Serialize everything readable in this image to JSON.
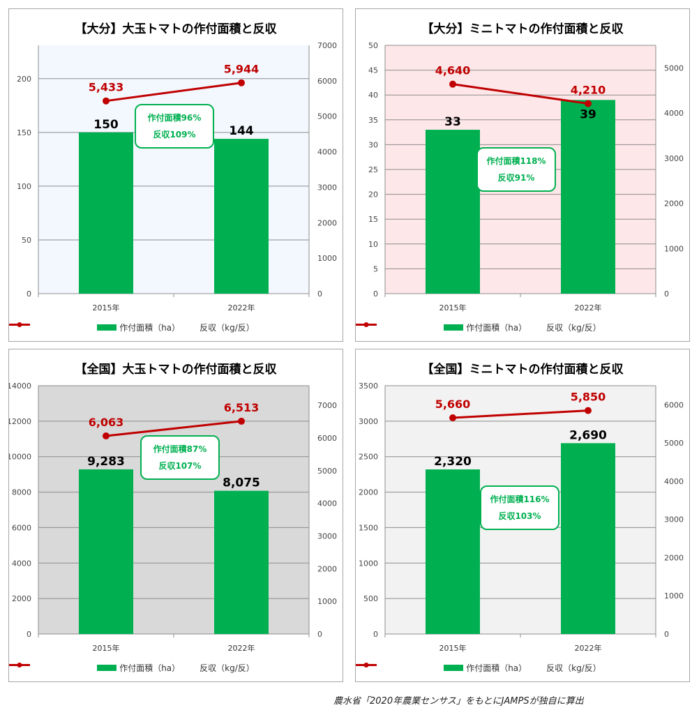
{
  "colors": {
    "bar": "#00b050",
    "line": "#c00000",
    "callout": "#00b050"
  },
  "legend": {
    "bar_label": "作付面積（ha）",
    "line_label": "反収（kg/反）"
  },
  "source_note": "農水省「2020年農業センサス」をもとにJAMPSが独自に算出",
  "charts": [
    {
      "title": "【大分】大玉トマトの作付面積と反収",
      "plot_bg": "#f2f8fe",
      "callout": {
        "line1": "作付面積96%",
        "line2": "反収109%"
      },
      "chart_data": {
        "type": "bar+line",
        "categories": [
          "2015年",
          "2022年"
        ],
        "series": [
          {
            "values": [
              150,
              144
            ],
            "axis": "left",
            "kind": "bar"
          },
          {
            "values": [
              5433,
              5944
            ],
            "axis": "right",
            "kind": "line"
          }
        ],
        "bar_labels": [
          "150",
          "144"
        ],
        "line_labels": [
          "5,433",
          "5,944"
        ],
        "ylim_left": [
          0,
          231
        ],
        "yticks_left": [
          0,
          50,
          100,
          150,
          200
        ],
        "ylim_right": [
          0,
          7000
        ],
        "yticks_right": [
          0,
          1000,
          2000,
          3000,
          4000,
          5000,
          6000,
          7000
        ],
        "left_top_tick_visible": false,
        "grid": true
      }
    },
    {
      "title": "【大分】ミニトマトの作付面積と反収",
      "plot_bg": "#fee7e9",
      "callout": {
        "line1": "作付面積118%",
        "line2": "反収91%"
      },
      "chart_data": {
        "type": "bar+line",
        "categories": [
          "2015年",
          "2022年"
        ],
        "series": [
          {
            "values": [
              33,
              39
            ],
            "axis": "left",
            "kind": "bar"
          },
          {
            "values": [
              4640,
              4210
            ],
            "axis": "right",
            "kind": "line"
          }
        ],
        "bar_labels": [
          "33",
          "39"
        ],
        "line_labels": [
          "4,640",
          "4,210"
        ],
        "ylim_left": [
          0,
          50
        ],
        "yticks_left": [
          0,
          5,
          10,
          15,
          20,
          25,
          30,
          35,
          40,
          45,
          50
        ],
        "ylim_right": [
          0,
          5500
        ],
        "yticks_right": [
          0,
          1000,
          2000,
          3000,
          4000,
          5000
        ],
        "left_top_tick_visible": true,
        "grid": true
      }
    },
    {
      "title": "【全国】大玉トマトの作付面積と反収",
      "plot_bg": "#d9d9d9",
      "callout": {
        "line1": "作付面積87%",
        "line2": "反収107%"
      },
      "chart_data": {
        "type": "bar+line",
        "categories": [
          "2015年",
          "2022年"
        ],
        "series": [
          {
            "values": [
              9283,
              8075
            ],
            "axis": "left",
            "kind": "bar"
          },
          {
            "values": [
              6063,
              6513
            ],
            "axis": "right",
            "kind": "line"
          }
        ],
        "bar_labels": [
          "9,283",
          "8,075"
        ],
        "line_labels": [
          "6,063",
          "6,513"
        ],
        "ylim_left": [
          0,
          14000
        ],
        "yticks_left": [
          0,
          2000,
          4000,
          6000,
          8000,
          10000,
          12000,
          14000
        ],
        "ylim_right": [
          0,
          7600
        ],
        "yticks_right": [
          0,
          1000,
          2000,
          3000,
          4000,
          5000,
          6000,
          7000
        ],
        "left_top_tick_visible": true,
        "grid": true
      }
    },
    {
      "title": "【全国】ミニトマトの作付面積と反収",
      "plot_bg": "#f2f2f2",
      "callout": {
        "line1": "作付面積116%",
        "line2": "反収103%"
      },
      "chart_data": {
        "type": "bar+line",
        "categories": [
          "2015年",
          "2022年"
        ],
        "series": [
          {
            "values": [
              2320,
              2690
            ],
            "axis": "left",
            "kind": "bar"
          },
          {
            "values": [
              5660,
              5850
            ],
            "axis": "right",
            "kind": "line"
          }
        ],
        "bar_labels": [
          "2,320",
          "2,690"
        ],
        "line_labels": [
          "5,660",
          "5,850"
        ],
        "ylim_left": [
          0,
          3500
        ],
        "yticks_left": [
          0,
          500,
          1000,
          1500,
          2000,
          2500,
          3000,
          3500
        ],
        "ylim_right": [
          0,
          6500
        ],
        "yticks_right": [
          0,
          1000,
          2000,
          3000,
          4000,
          5000,
          6000
        ],
        "left_top_tick_visible": true,
        "grid": true
      }
    }
  ]
}
